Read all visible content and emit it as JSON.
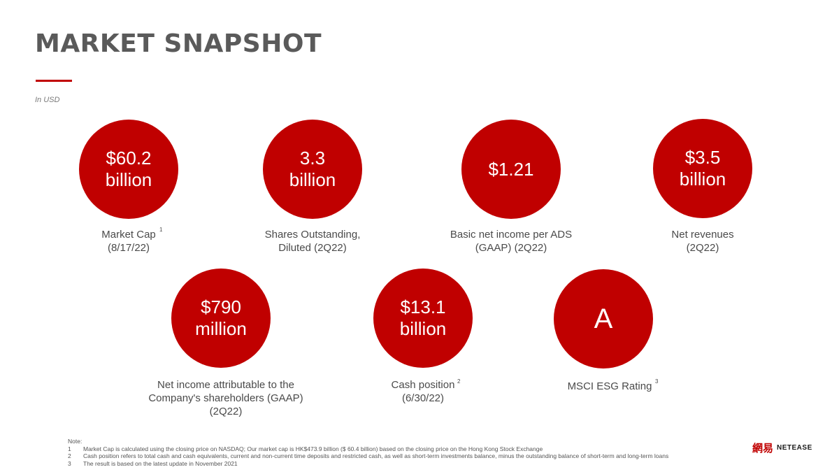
{
  "page": {
    "title": "MARKET SNAPSHOT",
    "unit_note": "In USD"
  },
  "metrics": [
    {
      "value": "$60.2\nbillion",
      "label": "Market Cap\n(8/17/22)",
      "footnote": "1"
    },
    {
      "value": "3.3\nbillion",
      "label": "Shares Outstanding,\nDiluted (2Q22)",
      "footnote": ""
    },
    {
      "value": "$1.21",
      "label": "Basic net income per ADS\n(GAAP) (2Q22)",
      "footnote": ""
    },
    {
      "value": "$3.5\nbillion",
      "label": "Net revenues\n(2Q22)",
      "footnote": ""
    },
    {
      "value": "$790\nmillion",
      "label": "Net income attributable to the\nCompany's shareholders (GAAP)\n(2Q22)",
      "footnote": ""
    },
    {
      "value": "$13.1\nbillion",
      "label": "Cash position\n(6/30/22)",
      "footnote": "2"
    },
    {
      "value": "A",
      "label": "MSCI ESG Rating",
      "footnote": "3"
    }
  ],
  "notes": {
    "heading": "Note:",
    "items": [
      {
        "num": "1",
        "text": "Market Cap is calculated using the closing price on NASDAQ; Our market cap is HK$473.9 billion ($ 60.4 billion) based on the closing price on the Hong Kong Stock Exchange"
      },
      {
        "num": "2",
        "text": "Cash position refers to total cash and cash equivalents, current and non-current time deposits and restricted cash, as well as short-term investments balance, minus the outstanding balance of short-term and long-term loans"
      },
      {
        "num": "3",
        "text": "The result is based on the latest update in November 2021"
      }
    ]
  },
  "brand": {
    "mark": "網易",
    "name": "NETEASE",
    "accent_color": "#c00000"
  }
}
